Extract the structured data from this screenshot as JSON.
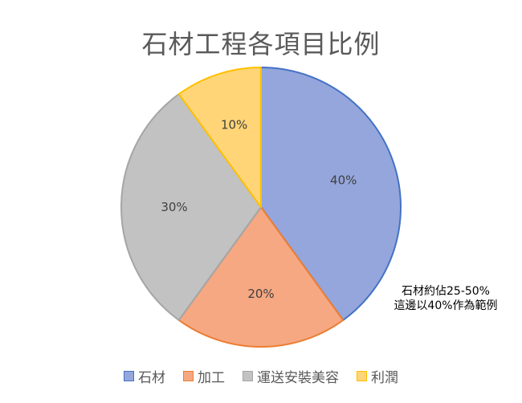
{
  "chart_data": {
    "type": "pie",
    "title": "石材工程各項目比例",
    "categories": [
      "石材",
      "加工",
      "運送安裝美容",
      "利潤"
    ],
    "values": [
      40,
      20,
      30,
      10
    ],
    "data_labels": [
      "40%",
      "20%",
      "30%",
      "10%"
    ],
    "colors": {
      "fill": [
        "#94a6dc",
        "#f5a882",
        "#c2c2c2",
        "#ffd577"
      ],
      "stroke": [
        "#4472c4",
        "#ed7d31",
        "#a5a5a5",
        "#ffc000"
      ]
    },
    "annotation": [
      "石材約佔25-50%",
      "這邊以40%作為範例"
    ],
    "legend_position": "bottom"
  }
}
